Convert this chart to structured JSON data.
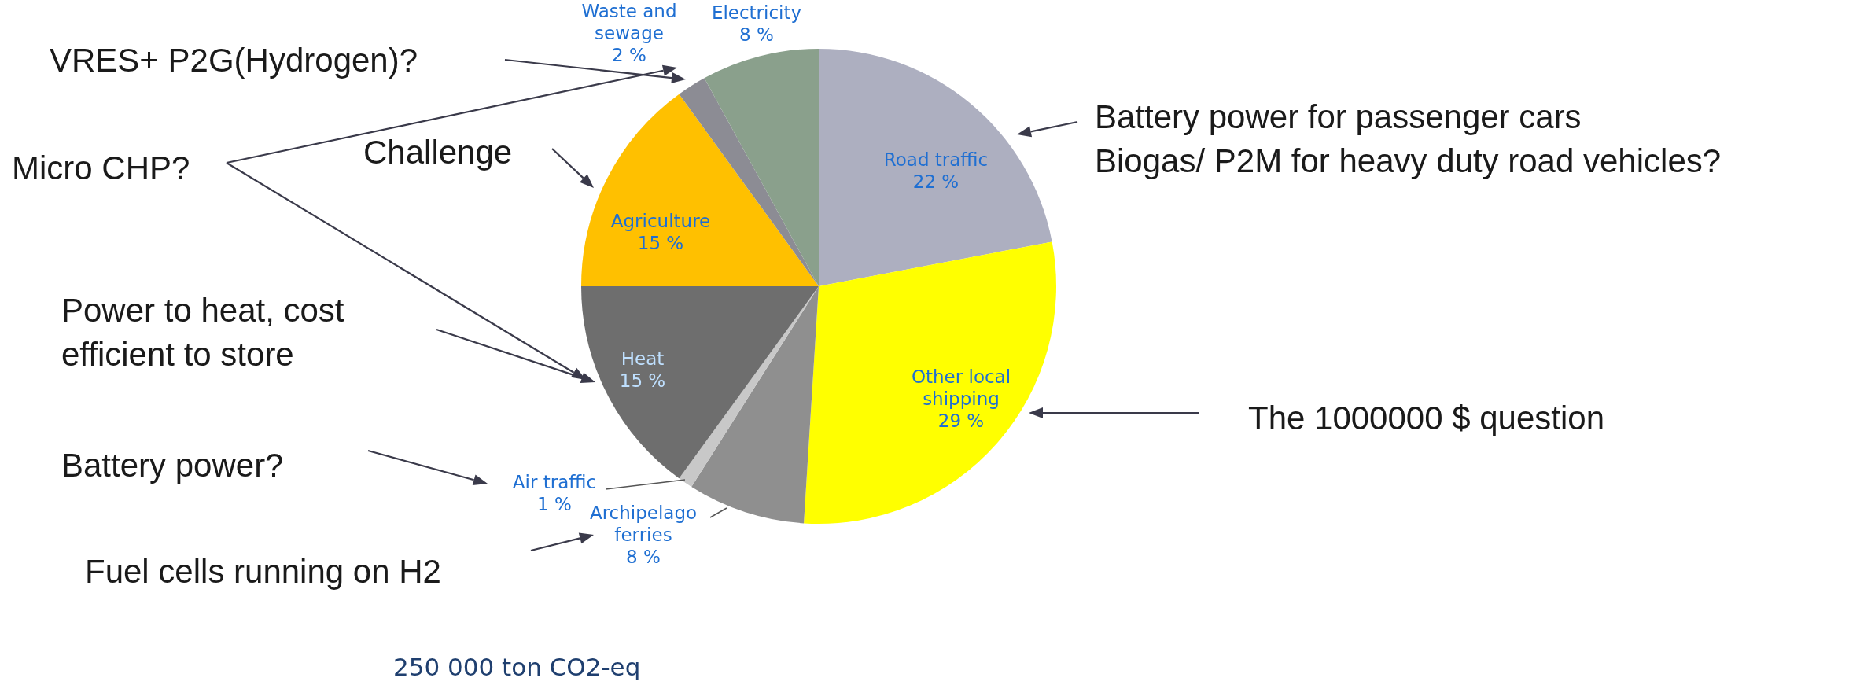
{
  "chart_data": {
    "type": "pie",
    "subtitle": "250 000 ton CO2-eq",
    "categories": [
      "Road traffic",
      "Other local shipping",
      "Archipelago ferries",
      "Air traffic",
      "Heat",
      "Agriculture",
      "Waste and sewage",
      "Electricity"
    ],
    "values": [
      22,
      29,
      8,
      1,
      15,
      15,
      2,
      8
    ],
    "value_labels": [
      "22 %",
      "29 %",
      "8 %",
      "1 %",
      "15 %",
      "15 %",
      "2 %",
      "8 %"
    ],
    "colors": [
      "#adafc0",
      "#ffff00",
      "#8f8f8f",
      "#c8c8c8",
      "#6e6e6e",
      "#ffc000",
      "#8c8c94",
      "#8aa08c"
    ],
    "legend": false,
    "annotations": [
      "VRES+ P2G(Hydrogen)?",
      "Micro CHP?",
      "Challenge",
      "Battery power for passenger cars\nBiogas/ P2M for heavy duty road vehicles?",
      "Power to heat, cost\nefficient to store",
      "The 1000000 $ question",
      "Battery power?",
      "Fuel cells running on H2"
    ]
  }
}
